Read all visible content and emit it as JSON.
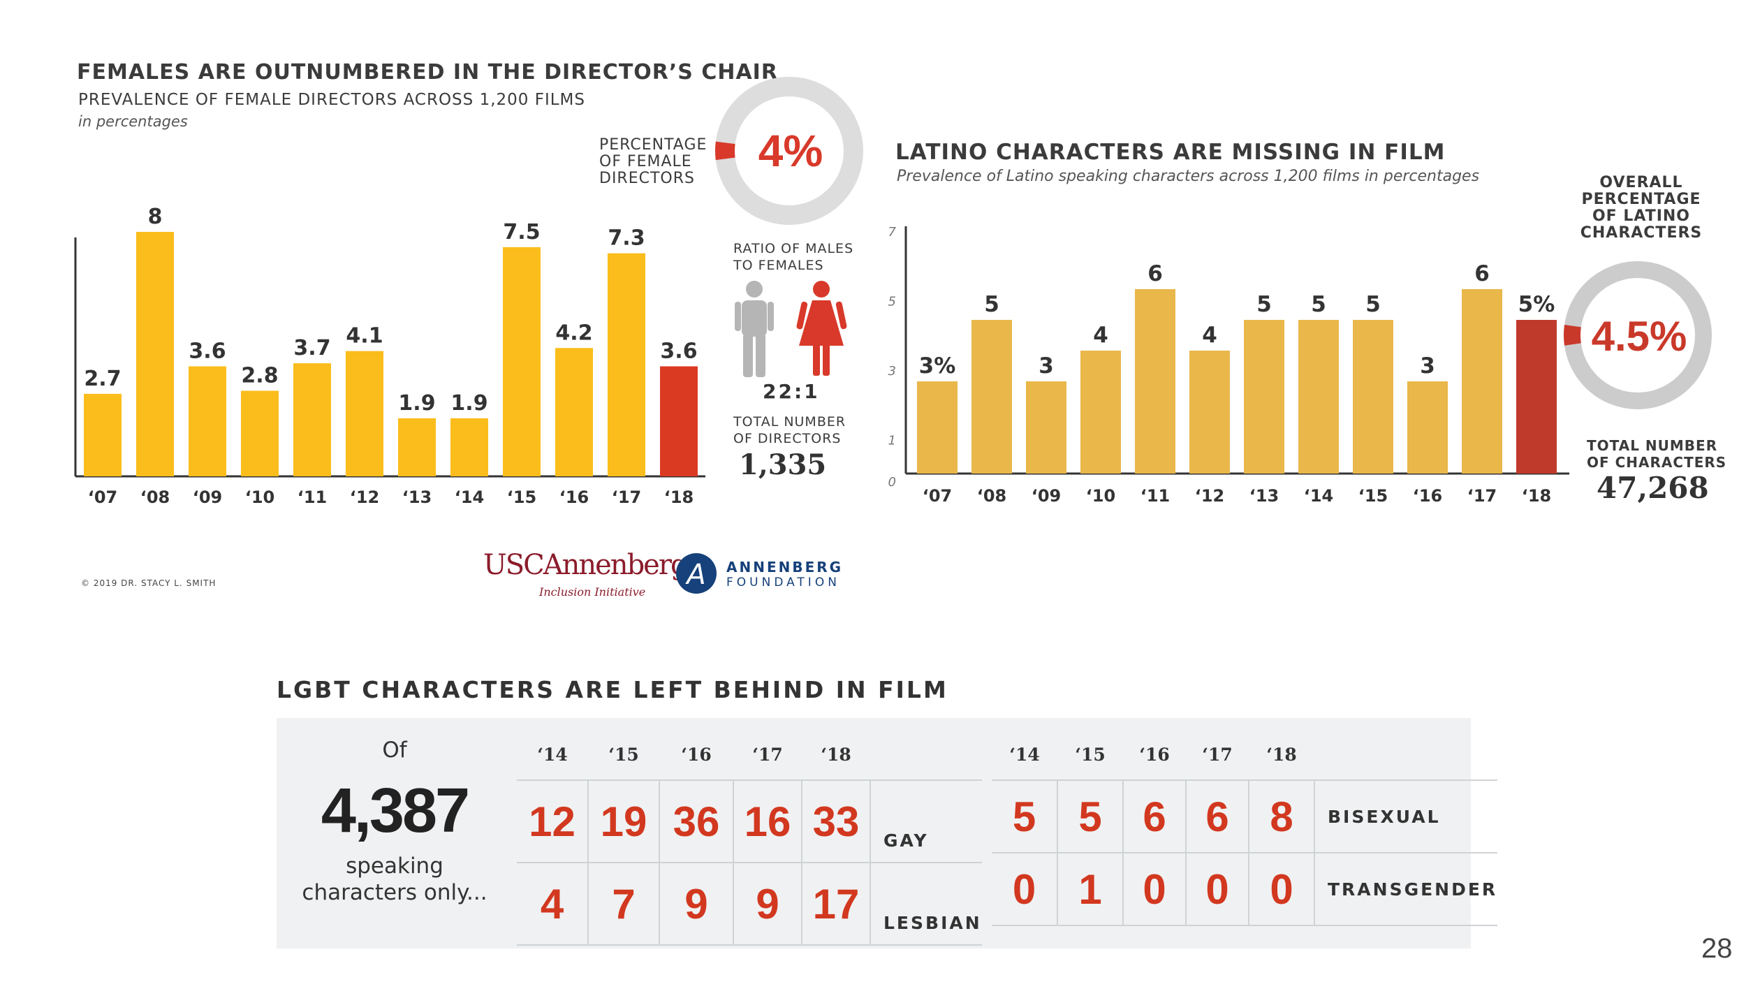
{
  "left_panel": {
    "title": "FEMALES ARE OUTNUMBERED IN THE DIRECTOR’S CHAIR",
    "subtitle": "PREVALENCE OF FEMALE DIRECTORS ACROSS 1,200 FILMS",
    "note": "in percentages",
    "pct_caption": "PERCENTAGE\nOF FEMALE\nDIRECTORS",
    "pct_value": "4%",
    "pct_fraction": 0.04,
    "ratio_caption": "RATIO OF MALES\nTO FEMALES",
    "ratio_value": "22:1",
    "total_caption": "TOTAL NUMBER\nOF DIRECTORS",
    "total_value": "1,335"
  },
  "right_panel": {
    "title": "LATINO CHARACTERS ARE MISSING IN FILM",
    "subtitle": "Prevalence of Latino speaking characters across 1,200 films in percentages",
    "overall_caption": "OVERALL\nPERCENTAGE\nOF LATINO\nCHARACTERS",
    "overall_value": "4.5%",
    "overall_fraction": 0.045,
    "total_caption": "TOTAL NUMBER\nOF CHARACTERS",
    "total_value": "47,268"
  },
  "chart_data": [
    {
      "type": "bar",
      "categories": [
        "‘07",
        "‘08",
        "‘09",
        "‘10",
        "‘11",
        "‘12",
        "‘13",
        "‘14",
        "‘15",
        "‘16",
        "‘17",
        "‘18"
      ],
      "values": [
        2.7,
        8,
        3.6,
        2.8,
        3.7,
        4.1,
        1.9,
        1.9,
        7.5,
        4.2,
        7.3,
        3.6
      ],
      "labels": [
        "2.7",
        "8",
        "3.6",
        "2.8",
        "3.7",
        "4.1",
        "1.9",
        "1.9",
        "7.5",
        "4.2",
        "7.3",
        "3.6"
      ],
      "title": "FEMALES ARE OUTNUMBERED IN THE DIRECTOR’S CHAIR",
      "ylim": [
        0,
        8
      ],
      "colors": {
        "bar": "#fbbd1b",
        "highlight": "#db3a22"
      }
    },
    {
      "type": "bar",
      "categories": [
        "‘07",
        "‘08",
        "‘09",
        "‘10",
        "‘11",
        "‘12",
        "‘13",
        "‘14",
        "‘15",
        "‘16",
        "‘17",
        "‘18"
      ],
      "values": [
        3,
        5,
        3,
        4,
        6,
        4,
        5,
        5,
        5,
        3,
        6,
        5
      ],
      "labels": [
        "3%",
        "5",
        "3",
        "4",
        "6",
        "4",
        "5",
        "5",
        "5",
        "3",
        "6",
        "5%"
      ],
      "title": "LATINO CHARACTERS ARE MISSING IN FILM",
      "yticks": [
        "0",
        "1",
        "3",
        "5",
        "7"
      ],
      "ylim": [
        0,
        7
      ],
      "colors": {
        "bar": "#e9b74a",
        "highlight": "#c03a2b"
      }
    }
  ],
  "footer": {
    "copyright": "© 2019 DR. STACY L. SMITH",
    "usc_logo": "USCAnnenberg",
    "usc_sub": "Inclusion Initiative",
    "foundation_line1": "ANNENBERG",
    "foundation_line2": "FOUNDATION",
    "foundation_mark": "A"
  },
  "lgbt": {
    "title": "LGBT CHARACTERS ARE LEFT BEHIND IN FILM",
    "of_text": "Of",
    "total": "4,387",
    "speaking_line1": "speaking",
    "speaking_line2": "characters only...",
    "years": [
      "‘14",
      "‘15",
      "‘16",
      "‘17",
      "‘18"
    ],
    "gay": [
      "12",
      "19",
      "36",
      "16",
      "33"
    ],
    "gay_label": "GAY",
    "lesbian": [
      "4",
      "7",
      "9",
      "9",
      "17"
    ],
    "lesbian_label": "LESBIAN",
    "bisexual": [
      "5",
      "5",
      "6",
      "6",
      "8"
    ],
    "bisexual_label": "BISEXUAL",
    "transgender": [
      "0",
      "1",
      "0",
      "0",
      "0"
    ],
    "transgender_label": "TRANSGENDER"
  },
  "page_number": "28"
}
